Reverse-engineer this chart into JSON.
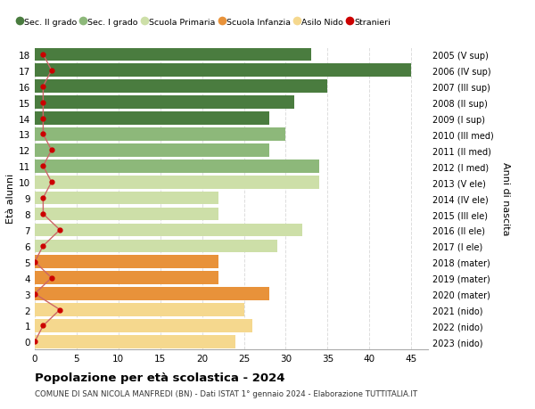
{
  "ages": [
    0,
    1,
    2,
    3,
    4,
    5,
    6,
    7,
    8,
    9,
    10,
    11,
    12,
    13,
    14,
    15,
    16,
    17,
    18
  ],
  "labels_right": [
    "2023 (nido)",
    "2022 (nido)",
    "2021 (nido)",
    "2020 (mater)",
    "2019 (mater)",
    "2018 (mater)",
    "2017 (I ele)",
    "2016 (II ele)",
    "2015 (III ele)",
    "2014 (IV ele)",
    "2013 (V ele)",
    "2012 (I med)",
    "2011 (II med)",
    "2010 (III med)",
    "2009 (I sup)",
    "2008 (II sup)",
    "2007 (III sup)",
    "2006 (IV sup)",
    "2005 (V sup)"
  ],
  "bar_values": [
    24,
    26,
    25,
    28,
    22,
    22,
    29,
    32,
    22,
    22,
    34,
    34,
    28,
    30,
    28,
    31,
    35,
    45,
    33
  ],
  "stranieri_values": [
    0,
    1,
    3,
    0,
    2,
    0,
    1,
    3,
    1,
    1,
    2,
    1,
    2,
    1,
    1,
    1,
    1,
    2,
    1
  ],
  "bar_colors": [
    "#f5d88e",
    "#f5d88e",
    "#f5d88e",
    "#e8923a",
    "#e8923a",
    "#e8923a",
    "#cddfa8",
    "#cddfa8",
    "#cddfa8",
    "#cddfa8",
    "#cddfa8",
    "#8db87a",
    "#8db87a",
    "#8db87a",
    "#4a7c3f",
    "#4a7c3f",
    "#4a7c3f",
    "#4a7c3f",
    "#4a7c3f"
  ],
  "legend_labels": [
    "Sec. II grado",
    "Sec. I grado",
    "Scuola Primaria",
    "Scuola Infanzia",
    "Asilo Nido",
    "Stranieri"
  ],
  "legend_colors": [
    "#4a7c3f",
    "#8db87a",
    "#cddfa8",
    "#e8923a",
    "#f5d88e",
    "#cc0000"
  ],
  "ylabel": "Età alunni",
  "ylabel_right": "Anni di nascita",
  "title": "Popolazione per età scolastica - 2024",
  "subtitle": "COMUNE DI SAN NICOLA MANFREDI (BN) - Dati ISTAT 1° gennaio 2024 - Elaborazione TUTTITALIA.IT",
  "xlim": [
    0,
    47
  ],
  "background_color": "#ffffff",
  "stranieri_color": "#cc0000",
  "stranieri_line_color": "#cc6666",
  "grid_color": "#dddddd"
}
